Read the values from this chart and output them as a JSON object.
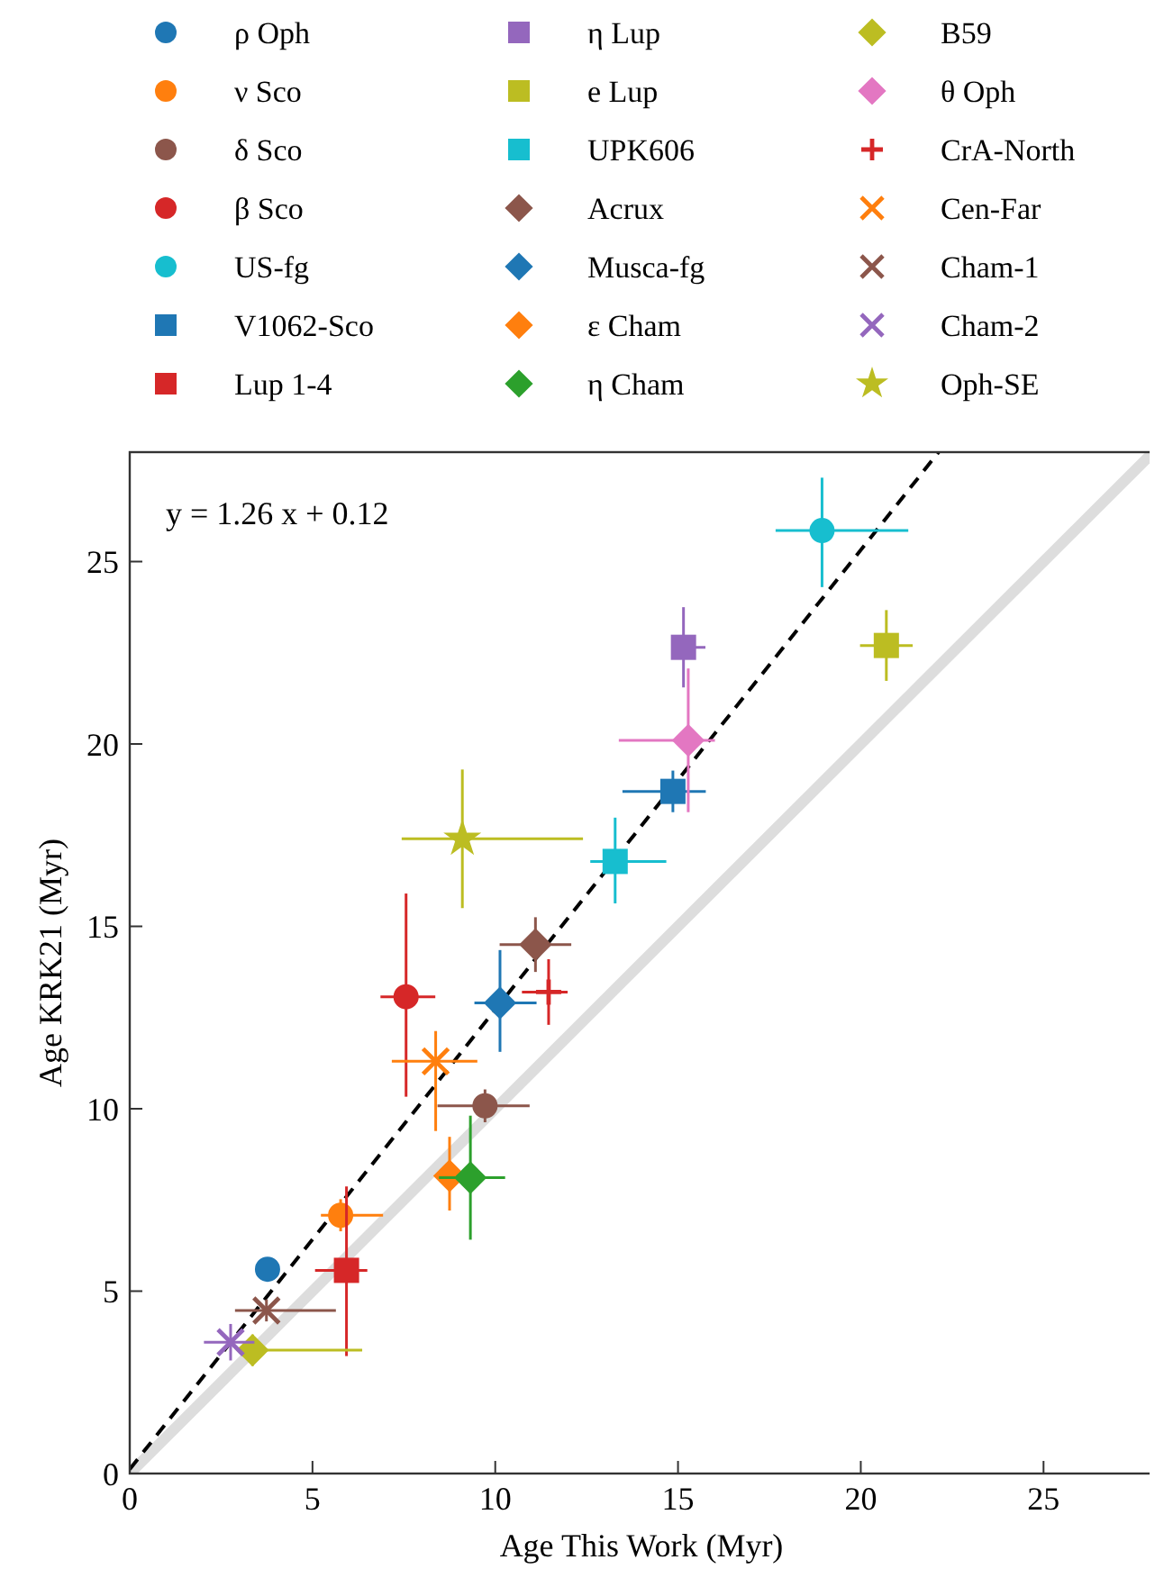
{
  "chart_data": {
    "type": "scatter",
    "xlabel": "Age This Work (Myr)",
    "ylabel": "Age KRK21 (Myr)",
    "xlim": [
      0,
      28
    ],
    "ylim": [
      0,
      28
    ],
    "xticks": [
      0,
      5,
      10,
      15,
      20,
      25
    ],
    "yticks": [
      0,
      5,
      10,
      15,
      20,
      25
    ],
    "grid": false,
    "legend": "top",
    "annotations": [
      "y = 1.26 x + 0.12"
    ],
    "series": [
      {
        "name": "ρ Oph",
        "color": "#1f77b4",
        "marker": "circle",
        "x": [
          3.77
        ],
        "values": [
          5.6
        ],
        "xerrors": [
          [
            3.62,
            3.92
          ]
        ],
        "errors": [
          [
            5.35,
            5.85
          ]
        ]
      },
      {
        "name": "ν Sco",
        "color": "#ff7f0e",
        "marker": "circle",
        "x": [
          5.77
        ],
        "values": [
          7.08
        ],
        "xerrors": [
          [
            5.23,
            6.93
          ]
        ],
        "errors": [
          [
            6.64,
            7.52
          ]
        ]
      },
      {
        "name": "δ Sco",
        "color": "#8c564b",
        "marker": "circle",
        "x": [
          9.72
        ],
        "values": [
          10.08
        ],
        "xerrors": [
          [
            8.42,
            10.94
          ]
        ],
        "errors": [
          [
            9.63,
            10.53
          ]
        ]
      },
      {
        "name": "β Sco",
        "color": "#d62728",
        "marker": "circle",
        "x": [
          7.56
        ],
        "values": [
          13.07
        ],
        "xerrors": [
          [
            6.86,
            8.36
          ]
        ],
        "errors": [
          [
            10.33,
            15.9
          ]
        ]
      },
      {
        "name": "US-fg",
        "color": "#17becf",
        "marker": "circle",
        "x": [
          18.94
        ],
        "values": [
          25.85
        ],
        "xerrors": [
          [
            17.67,
            21.3
          ]
        ],
        "errors": [
          [
            24.3,
            27.3
          ]
        ]
      },
      {
        "name": "V1062-Sco",
        "color": "#1f77b4",
        "marker": "square",
        "x": [
          14.86
        ],
        "values": [
          18.7
        ],
        "xerrors": [
          [
            13.48,
            15.76
          ]
        ],
        "errors": [
          [
            18.13,
            19.27
          ]
        ]
      },
      {
        "name": "Lup 1-4",
        "color": "#d62728",
        "marker": "square",
        "x": [
          5.93
        ],
        "values": [
          5.57
        ],
        "xerrors": [
          [
            5.07,
            6.5
          ]
        ],
        "errors": [
          [
            3.22,
            7.87
          ]
        ]
      },
      {
        "name": "η Lup",
        "color": "#9467bd",
        "marker": "square",
        "x": [
          15.15
        ],
        "values": [
          22.65
        ],
        "xerrors": [
          [
            14.95,
            15.75
          ]
        ],
        "errors": [
          [
            21.55,
            23.75
          ]
        ]
      },
      {
        "name": "e Lup",
        "color": "#bcbd22",
        "marker": "square",
        "x": [
          20.7
        ],
        "values": [
          22.7
        ],
        "xerrors": [
          [
            19.98,
            21.42
          ]
        ],
        "errors": [
          [
            21.73,
            23.67
          ]
        ]
      },
      {
        "name": "UPK606",
        "color": "#17becf",
        "marker": "square",
        "x": [
          13.28
        ],
        "values": [
          16.78
        ],
        "xerrors": [
          [
            12.6,
            14.68
          ]
        ],
        "errors": [
          [
            15.63,
            17.98
          ]
        ]
      },
      {
        "name": "Acrux",
        "color": "#8c564b",
        "marker": "diamond",
        "x": [
          11.1
        ],
        "values": [
          14.5
        ],
        "xerrors": [
          [
            10.12,
            12.08
          ]
        ],
        "errors": [
          [
            13.75,
            15.25
          ]
        ]
      },
      {
        "name": "Musca-fg",
        "color": "#1f77b4",
        "marker": "diamond",
        "x": [
          10.13
        ],
        "values": [
          12.9
        ],
        "xerrors": [
          [
            9.43,
            11.13
          ]
        ],
        "errors": [
          [
            11.56,
            14.35
          ]
        ]
      },
      {
        "name": "ε Cham",
        "color": "#ff7f0e",
        "marker": "diamond",
        "x": [
          8.75
        ],
        "values": [
          8.16
        ],
        "xerrors": [
          [
            8.53,
            8.97
          ]
        ],
        "errors": [
          [
            7.21,
            9.23
          ]
        ]
      },
      {
        "name": "η Cham",
        "color": "#2ca02c",
        "marker": "diamond",
        "x": [
          9.32
        ],
        "values": [
          8.11
        ],
        "xerrors": [
          [
            8.46,
            10.27
          ]
        ],
        "errors": [
          [
            6.41,
            9.81
          ]
        ]
      },
      {
        "name": "B59",
        "color": "#bcbd22",
        "marker": "diamond",
        "x": [
          3.36
        ],
        "values": [
          3.38
        ],
        "xerrors": [
          [
            3.2,
            6.36
          ]
        ],
        "errors": [
          [
            2.95,
            3.81
          ]
        ]
      },
      {
        "name": "θ Oph",
        "color": "#e377c2",
        "marker": "diamond",
        "x": [
          15.28
        ],
        "values": [
          20.1
        ],
        "xerrors": [
          [
            13.38,
            16.01
          ]
        ],
        "errors": [
          [
            18.13,
            22.07
          ]
        ]
      },
      {
        "name": "CrA-North",
        "color": "#d62728",
        "marker": "plus",
        "x": [
          11.46
        ],
        "values": [
          13.2
        ],
        "xerrors": [
          [
            10.73,
            11.98
          ]
        ],
        "errors": [
          [
            12.3,
            14.1
          ]
        ]
      },
      {
        "name": "Cen-Far",
        "color": "#ff7f0e",
        "marker": "cross",
        "x": [
          8.37
        ],
        "values": [
          11.3
        ],
        "xerrors": [
          [
            7.17,
            9.51
          ]
        ],
        "errors": [
          [
            9.39,
            12.13
          ]
        ]
      },
      {
        "name": "Cham-1",
        "color": "#8c564b",
        "marker": "cross",
        "x": [
          3.74
        ],
        "values": [
          4.47
        ],
        "xerrors": [
          [
            2.88,
            5.64
          ]
        ],
        "errors": [
          [
            4.17,
            4.77
          ]
        ]
      },
      {
        "name": "Cham-2",
        "color": "#9467bd",
        "marker": "cross",
        "x": [
          2.76
        ],
        "values": [
          3.6
        ],
        "xerrors": [
          [
            2.03,
            3.41
          ]
        ],
        "errors": [
          [
            3.1,
            4.1
          ]
        ]
      },
      {
        "name": "Oph-SE",
        "color": "#bcbd22",
        "marker": "star",
        "x": [
          9.1
        ],
        "values": [
          17.4
        ],
        "xerrors": [
          [
            7.44,
            12.4
          ]
        ],
        "errors": [
          [
            15.5,
            19.3
          ]
        ]
      },
      {
        "type": "line",
        "color": "#dddddd",
        "line_style": "solid",
        "x": [
          0,
          28
        ],
        "values": [
          0,
          28
        ]
      },
      {
        "type": "line",
        "color": "#000000",
        "line_style": "dashed",
        "x": [
          0,
          22.13
        ],
        "values": [
          0.12,
          28
        ]
      }
    ]
  }
}
